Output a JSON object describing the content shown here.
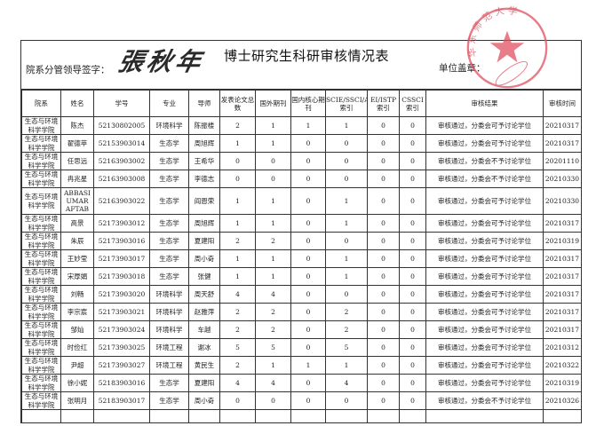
{
  "header": {
    "title": "博士研究生科研审核情况表",
    "sign_label": "院系分管领导签字：",
    "signature": "張秋年",
    "seal_label": "单位盖章：",
    "stamp_text": "华东师范大学 生态与环境科学学院",
    "stamp_color": "#e05060"
  },
  "columns": [
    "院系",
    "姓名",
    "学号",
    "专业",
    "导师",
    "发表论文总数",
    "国外期刊",
    "国内核心期刊",
    "SCIE/SSCI/A&HCI索引",
    "EI/ISTP索引",
    "CSSCI索引",
    "审核结果",
    "审核时间"
  ],
  "rows": [
    {
      "dept": "生态与环境科学学院",
      "name": "陈杰",
      "id": "52130802005",
      "major": "环境科学",
      "advisor": "陈振楼",
      "total": "2",
      "foreign": "1",
      "core": "1",
      "scie": "1",
      "ei": "0",
      "cssci": "0",
      "result": "审核通过，分委会可予讨论学位",
      "date": "20210317"
    },
    {
      "dept": "生态与环境科学学院",
      "name": "翟德苹",
      "id": "52153903014",
      "major": "生态学",
      "advisor": "周旭辉",
      "total": "1",
      "foreign": "1",
      "core": "0",
      "scie": "0",
      "ei": "0",
      "cssci": "0",
      "result": "审核通过，分委会可予讨论学位",
      "date": "20210317"
    },
    {
      "dept": "生态与环境科学学院",
      "name": "任思远",
      "id": "52163903002",
      "major": "生态学",
      "advisor": "王希华",
      "total": "0",
      "foreign": "0",
      "core": "0",
      "scie": "0",
      "ei": "0",
      "cssci": "0",
      "result": "审核通过，分委会不予讨论学位",
      "date": "20201110"
    },
    {
      "dept": "生态与环境科学学院",
      "name": "冉兆星",
      "id": "52163903008",
      "major": "生态学",
      "advisor": "李德志",
      "total": "0",
      "foreign": "0",
      "core": "0",
      "scie": "0",
      "ei": "0",
      "cssci": "0",
      "result": "审核通过，分委会不予讨论学位",
      "date": "20210330"
    },
    {
      "dept": "生态与环境科学学院",
      "name": "ABBASI UMAR AFTAB",
      "id": "52163903022",
      "major": "生态学",
      "advisor": "阎恩荣",
      "total": "1",
      "foreign": "1",
      "core": "0",
      "scie": "1",
      "ei": "0",
      "cssci": "0",
      "result": "审核通过，分委会可予讨论学位",
      "date": "20210330"
    },
    {
      "dept": "生态与环境科学学院",
      "name": "高景",
      "id": "52173903012",
      "major": "生态学",
      "advisor": "周旭辉",
      "total": "1",
      "foreign": "1",
      "core": "0",
      "scie": "1",
      "ei": "0",
      "cssci": "0",
      "result": "审核通过，分委会可予讨论学位",
      "date": "20210317"
    },
    {
      "dept": "生态与环境科学学院",
      "name": "朱辰",
      "id": "52173903016",
      "major": "生态学",
      "advisor": "夏建阳",
      "total": "2",
      "foreign": "2",
      "core": "0",
      "scie": "0",
      "ei": "0",
      "cssci": "0",
      "result": "审核通过，分委会可予讨论学位",
      "date": "20210319"
    },
    {
      "dept": "生态与环境科学学院",
      "name": "王妙莹",
      "id": "52173903017",
      "major": "生态学",
      "advisor": "周小奇",
      "total": "1",
      "foreign": "1",
      "core": "0",
      "scie": "1",
      "ei": "0",
      "cssci": "0",
      "result": "审核通过，分委会可予讨论学位",
      "date": "20210317"
    },
    {
      "dept": "生态与环境科学学院",
      "name": "宋厚娟",
      "id": "52173903018",
      "major": "生态学",
      "advisor": "张健",
      "total": "1",
      "foreign": "1",
      "core": "0",
      "scie": "1",
      "ei": "0",
      "cssci": "0",
      "result": "审核通过，分委会可予讨论学位",
      "date": "20210317"
    },
    {
      "dept": "生态与环境科学学院",
      "name": "刘畅",
      "id": "52173903020",
      "major": "环境科学",
      "advisor": "周天舒",
      "total": "4",
      "foreign": "4",
      "core": "0",
      "scie": "0",
      "ei": "0",
      "cssci": "0",
      "result": "审核通过，分委会可予讨论学位",
      "date": "20210317"
    },
    {
      "dept": "生态与环境科学学院",
      "name": "李宗宸",
      "id": "52173903021",
      "major": "环境科学",
      "advisor": "赵雅萍",
      "total": "2",
      "foreign": "2",
      "core": "0",
      "scie": "2",
      "ei": "0",
      "cssci": "0",
      "result": "审核通过，分委会可予讨论学位",
      "date": "20210317"
    },
    {
      "dept": "生态与环境科学学院",
      "name": "邹灿",
      "id": "52173903024",
      "major": "环境科学",
      "advisor": "车越",
      "total": "2",
      "foreign": "2",
      "core": "0",
      "scie": "2",
      "ei": "0",
      "cssci": "0",
      "result": "审核通过，分委会可予讨论学位",
      "date": "20210317"
    },
    {
      "dept": "生态与环境科学学院",
      "name": "时俭红",
      "id": "52173903025",
      "major": "环境工程",
      "advisor": "谢冰",
      "total": "5",
      "foreign": "5",
      "core": "0",
      "scie": "5",
      "ei": "0",
      "cssci": "0",
      "result": "审核通过，分委会可予讨论学位",
      "date": "20210312"
    },
    {
      "dept": "生态与环境科学学院",
      "name": "尹超",
      "id": "52173903027",
      "major": "环境工程",
      "advisor": "黄民生",
      "total": "2",
      "foreign": "1",
      "core": "1",
      "scie": "1",
      "ei": "0",
      "cssci": "0",
      "result": "审核通过，分委会可予讨论学位",
      "date": "20210322"
    },
    {
      "dept": "生态与环境科学学院",
      "name": "徐小妮",
      "id": "52183903016",
      "major": "生态学",
      "advisor": "夏建阳",
      "total": "4",
      "foreign": "4",
      "core": "0",
      "scie": "4",
      "ei": "0",
      "cssci": "0",
      "result": "审核通过，分委会可予讨论学位",
      "date": "20210319"
    },
    {
      "dept": "生态与环境科学学院",
      "name": "张明月",
      "id": "52183903017",
      "major": "生态学",
      "advisor": "周小奇",
      "total": "0",
      "foreign": "0",
      "core": "0",
      "scie": "0",
      "ei": "0",
      "cssci": "0",
      "result": "审核通过，分委会不予讨论学位",
      "date": "20210326"
    }
  ]
}
